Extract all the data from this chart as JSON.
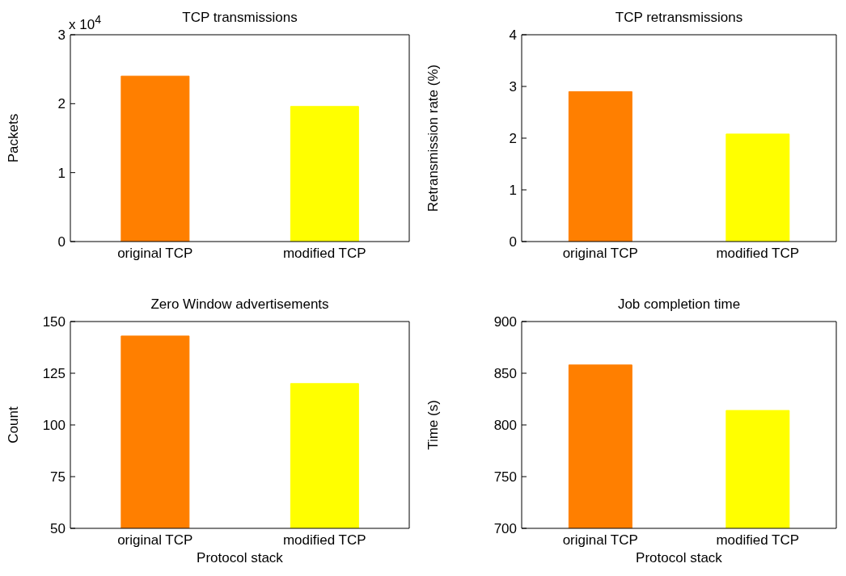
{
  "chart_data": [
    {
      "type": "bar",
      "title": "TCP transmissions",
      "ylabel": "Packets",
      "categories": [
        "original TCP",
        "modified TCP"
      ],
      "values": [
        2.4,
        1.96
      ],
      "colors": [
        "#ff7f00",
        "#ffff00"
      ],
      "ylim": [
        0,
        3
      ],
      "yticks": [
        0,
        1,
        2,
        3
      ],
      "annotations": [
        "x 10$^{4}$"
      ],
      "grid": false,
      "legend": false
    },
    {
      "type": "bar",
      "title": "TCP retransmissions",
      "ylabel": "Retransmission rate (%)",
      "categories": [
        "original TCP",
        "modified TCP"
      ],
      "values": [
        2.9,
        2.08
      ],
      "colors": [
        "#ff7f00",
        "#ffff00"
      ],
      "ylim": [
        0,
        4
      ],
      "yticks": [
        0,
        1,
        2,
        3,
        4
      ],
      "grid": false,
      "legend": false
    },
    {
      "type": "bar",
      "title": "Zero Window advertisements",
      "xlabel": "Protocol stack",
      "ylabel": "Count",
      "categories": [
        "original TCP",
        "modified TCP"
      ],
      "values": [
        143,
        120
      ],
      "colors": [
        "#ff7f00",
        "#ffff00"
      ],
      "ylim": [
        50,
        150
      ],
      "yticks": [
        50,
        75,
        100,
        125,
        150
      ],
      "grid": false,
      "legend": false
    },
    {
      "type": "bar",
      "title": "Job completion time",
      "xlabel": "Protocol stack",
      "ylabel": "Time (s)",
      "categories": [
        "original TCP",
        "modified TCP"
      ],
      "values": [
        858,
        814
      ],
      "colors": [
        "#ff7f00",
        "#ffff00"
      ],
      "ylim": [
        700,
        900
      ],
      "yticks": [
        700,
        750,
        800,
        850,
        900
      ],
      "grid": false,
      "legend": false
    }
  ]
}
